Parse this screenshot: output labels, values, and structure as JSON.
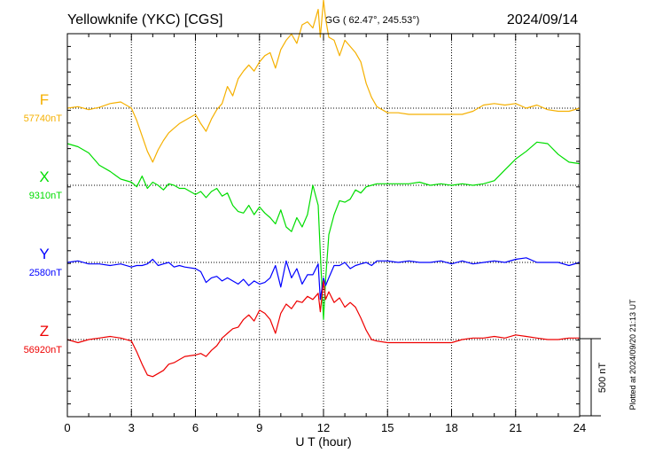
{
  "header": {
    "station": "Yellowknife (YKC)  [CGS]",
    "coords": "GG ( 62.47°, 245.53°)",
    "date": "2024/09/14"
  },
  "side_note": "Plotted at 2024/09/20 21:13 UT",
  "chart_data": {
    "type": "line",
    "title": "Yellowknife (YKC)  [CGS]",
    "xlabel": "U T (hour)",
    "ylabel": "",
    "xlim": [
      0,
      24
    ],
    "xticks": [
      0,
      3,
      6,
      9,
      12,
      15,
      18,
      21,
      24
    ],
    "x_tick_labels": [
      "0",
      "3",
      "6",
      "9",
      "12",
      "15",
      "18",
      "21",
      "24"
    ],
    "grid": true,
    "scale_bar": {
      "value_nT": 500,
      "label": "500 nT"
    },
    "x": [
      0,
      0.5,
      1,
      1.5,
      2,
      2.5,
      3,
      3.25,
      3.5,
      3.75,
      4,
      4.25,
      4.5,
      4.75,
      5,
      5.25,
      5.5,
      6,
      6.25,
      6.5,
      6.75,
      7,
      7.25,
      7.5,
      7.75,
      8,
      8.25,
      8.5,
      8.75,
      9,
      9.25,
      9.5,
      9.75,
      10,
      10.25,
      10.5,
      10.75,
      11,
      11.25,
      11.5,
      11.75,
      11.85,
      12,
      12.1,
      12.25,
      12.5,
      12.75,
      13,
      13.25,
      13.5,
      13.75,
      14,
      14.25,
      14.5,
      15,
      15.5,
      16,
      16.5,
      17,
      17.5,
      18,
      18.5,
      19,
      19.5,
      20,
      20.5,
      21,
      21.5,
      22,
      22.5,
      23,
      23.5,
      24
    ],
    "series": [
      {
        "name": "F",
        "label": "57740nT",
        "baseline_nT": 57740,
        "color": "#f5b000",
        "values": [
          57740,
          57750,
          57730,
          57745,
          57770,
          57780,
          57740,
          57660,
          57560,
          57460,
          57390,
          57470,
          57530,
          57580,
          57610,
          57640,
          57660,
          57700,
          57640,
          57590,
          57670,
          57730,
          57770,
          57880,
          57820,
          57930,
          57980,
          58020,
          57980,
          58040,
          58080,
          58100,
          58000,
          58120,
          58180,
          58220,
          58160,
          58280,
          58300,
          58260,
          58380,
          58200,
          58440,
          58320,
          58200,
          58180,
          58080,
          58180,
          58140,
          58100,
          58040,
          57900,
          57810,
          57750,
          57710,
          57710,
          57700,
          57700,
          57700,
          57700,
          57700,
          57700,
          57720,
          57760,
          57770,
          57760,
          57770,
          57740,
          57760,
          57730,
          57720,
          57720,
          57740
        ]
      },
      {
        "name": "X",
        "label": "9310nT",
        "baseline_nT": 9310,
        "color": "#00dd00",
        "values": [
          9580,
          9560,
          9520,
          9440,
          9400,
          9350,
          9330,
          9300,
          9370,
          9290,
          9330,
          9310,
          9280,
          9320,
          9310,
          9290,
          9290,
          9250,
          9270,
          9230,
          9270,
          9290,
          9240,
          9260,
          9180,
          9140,
          9130,
          9180,
          9120,
          9170,
          9130,
          9100,
          9060,
          9150,
          9040,
          9010,
          9100,
          9040,
          9120,
          9310,
          9180,
          8870,
          8440,
          8700,
          8990,
          9120,
          9210,
          9200,
          9220,
          9280,
          9260,
          9300,
          9310,
          9320,
          9320,
          9320,
          9320,
          9330,
          9310,
          9320,
          9310,
          9320,
          9310,
          9320,
          9340,
          9410,
          9480,
          9530,
          9590,
          9580,
          9510,
          9460,
          9450
        ]
      },
      {
        "name": "Y",
        "label": "2580nT",
        "baseline_nT": 2580,
        "color": "#0000ff",
        "values": [
          2580,
          2590,
          2570,
          2570,
          2560,
          2570,
          2550,
          2560,
          2560,
          2570,
          2600,
          2560,
          2570,
          2580,
          2550,
          2560,
          2550,
          2540,
          2520,
          2450,
          2480,
          2490,
          2460,
          2480,
          2460,
          2440,
          2470,
          2430,
          2460,
          2440,
          2450,
          2480,
          2560,
          2420,
          2590,
          2480,
          2540,
          2440,
          2500,
          2500,
          2570,
          2340,
          2480,
          2430,
          2480,
          2560,
          2560,
          2580,
          2540,
          2560,
          2570,
          2580,
          2560,
          2590,
          2590,
          2580,
          2590,
          2580,
          2580,
          2590,
          2570,
          2590,
          2570,
          2580,
          2590,
          2580,
          2600,
          2610,
          2580,
          2580,
          2580,
          2560,
          2580
        ]
      },
      {
        "name": "Z",
        "label": "56920nT",
        "baseline_nT": 56920,
        "color": "#ee0000",
        "values": [
          56920,
          56900,
          56920,
          56930,
          56940,
          56930,
          56910,
          56840,
          56760,
          56690,
          56680,
          56700,
          56720,
          56760,
          56770,
          56790,
          56810,
          56820,
          56830,
          56810,
          56850,
          56880,
          56930,
          56960,
          56990,
          57000,
          57050,
          57080,
          57040,
          57110,
          57090,
          57050,
          56960,
          57090,
          57150,
          57120,
          57170,
          57160,
          57200,
          57180,
          57220,
          57100,
          57300,
          57180,
          57230,
          57160,
          57190,
          57130,
          57160,
          57130,
          57060,
          56980,
          56920,
          56910,
          56900,
          56900,
          56900,
          56900,
          56900,
          56900,
          56900,
          56920,
          56930,
          56930,
          56940,
          56930,
          56950,
          56940,
          56930,
          56920,
          56920,
          56930,
          56930
        ]
      }
    ]
  }
}
